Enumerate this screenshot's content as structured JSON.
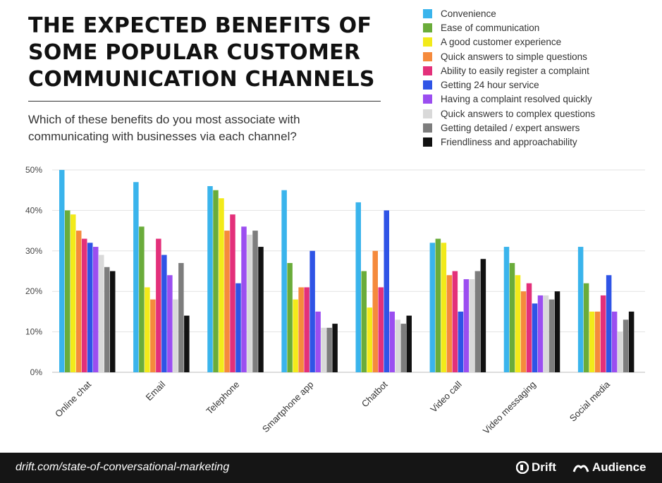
{
  "title_lines": [
    "THE EXPECTED BENEFITS OF",
    "SOME POPULAR CUSTOMER",
    "COMMUNICATION CHANNELS"
  ],
  "subtitle_lines": [
    "Which of these benefits do you most associate with",
    "communicating with businesses via each channel?"
  ],
  "footer": {
    "url": "drift.com/state-of-conversational-marketing",
    "brand1": "Drift",
    "brand2": "Audience",
    "brand1_icon": "drift-logo-icon",
    "brand2_icon": "audience-logo-icon"
  },
  "chart_data": {
    "type": "bar",
    "categories": [
      "Online chat",
      "Email",
      "Telephone",
      "Smartphone app",
      "Chatbot",
      "Video call",
      "Video messaging",
      "Social media"
    ],
    "series": [
      {
        "name": "Convenience",
        "color": "#3ab4ec",
        "values": [
          50,
          47,
          46,
          45,
          42,
          32,
          31,
          31
        ]
      },
      {
        "name": "Ease of communication",
        "color": "#6aac3a",
        "values": [
          40,
          36,
          45,
          27,
          25,
          33,
          27,
          22
        ]
      },
      {
        "name": "A good customer experience",
        "color": "#f2ea1a",
        "values": [
          39,
          21,
          43,
          18,
          16,
          32,
          24,
          15
        ]
      },
      {
        "name": "Quick answers to simple questions",
        "color": "#f58a3c",
        "values": [
          35,
          18,
          35,
          21,
          30,
          24,
          20,
          15
        ]
      },
      {
        "name": "Ability to easily register a complaint",
        "color": "#e3307a",
        "values": [
          33,
          33,
          39,
          21,
          21,
          25,
          22,
          19
        ]
      },
      {
        "name": "Getting 24 hour service",
        "color": "#2f54e6",
        "values": [
          32,
          29,
          22,
          30,
          40,
          15,
          17,
          24
        ]
      },
      {
        "name": "Having a complaint resolved quickly",
        "color": "#9b4ef0",
        "values": [
          31,
          24,
          36,
          15,
          15,
          23,
          19,
          15
        ]
      },
      {
        "name": "Quick answers to complex questions",
        "color": "#d9d9d9",
        "values": [
          29,
          18,
          34,
          11,
          13,
          23,
          19,
          10
        ]
      },
      {
        "name": "Getting detailed / expert answers",
        "color": "#7d7d7d",
        "values": [
          26,
          27,
          35,
          11,
          12,
          25,
          18,
          13
        ]
      },
      {
        "name": "Friendliness and approachability",
        "color": "#111111",
        "values": [
          25,
          14,
          31,
          12,
          14,
          28,
          20,
          15
        ]
      }
    ],
    "ylim": [
      0,
      50
    ],
    "yticks": [
      "0%",
      "10%",
      "20%",
      "30%",
      "40%",
      "50%"
    ],
    "grid": true,
    "legend_position": "top-right"
  }
}
